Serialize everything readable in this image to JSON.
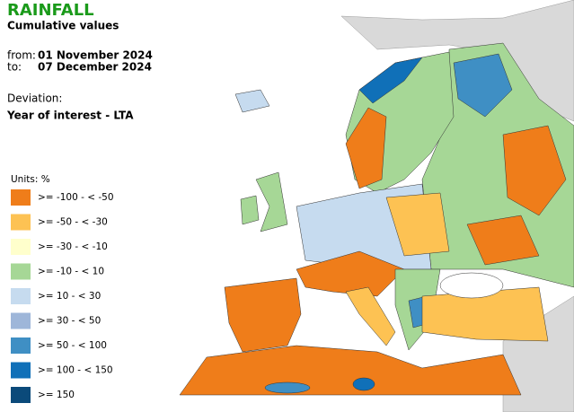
{
  "header": {
    "title": "RAINFALL",
    "subtitle": "Cumulative values",
    "from_label": "from:",
    "from_date": "01 November 2024",
    "to_label": "to:",
    "to_date": "07 December 2024",
    "deviation_label": "Deviation:",
    "deviation_value": "Year of interest - LTA"
  },
  "legend": {
    "units": "Units: %",
    "items": [
      {
        "label": ">= -100 - < -50",
        "color": "#ef7d1a"
      },
      {
        "label": ">= -50 - < -30",
        "color": "#fdc253"
      },
      {
        "label": ">= -30 - < -10",
        "color": "#ffffcc"
      },
      {
        "label": ">= -10 - < 10",
        "color": "#a6d796"
      },
      {
        "label": ">= 10 - < 30",
        "color": "#c6dbef"
      },
      {
        "label": ">= 30 - < 50",
        "color": "#9eb6d9"
      },
      {
        "label": ">= 50 - < 100",
        "color": "#3f8fc4"
      },
      {
        "label": ">= 100 - < 150",
        "color": "#1070b8"
      },
      {
        "label": ">= 150",
        "color": "#0b4a7a"
      }
    ]
  }
}
